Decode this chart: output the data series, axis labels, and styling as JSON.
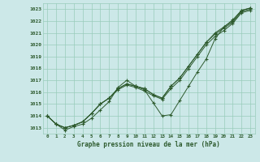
{
  "title": "Graphe pression niveau de la mer (hPa)",
  "bg_color": "#cce8e8",
  "grid_color": "#99ccbb",
  "line_color": "#2d5a2d",
  "marker_color": "#2d5a2d",
  "x": [
    0,
    1,
    2,
    3,
    4,
    5,
    6,
    7,
    8,
    9,
    10,
    11,
    12,
    13,
    14,
    15,
    16,
    17,
    18,
    19,
    20,
    21,
    22,
    23
  ],
  "series_main": [
    1014.0,
    1013.3,
    1012.8,
    1013.1,
    1013.3,
    1013.8,
    1014.5,
    1015.2,
    1016.4,
    1017.0,
    1016.5,
    1016.2,
    1015.1,
    1014.0,
    1014.1,
    1015.3,
    1016.5,
    1017.7,
    1018.8,
    1020.5,
    1021.5,
    1022.1,
    1022.9,
    1023.1
  ],
  "series_band1": [
    1014.0,
    1013.3,
    1013.0,
    1013.2,
    1013.5,
    1014.2,
    1015.0,
    1015.5,
    1016.3,
    1016.7,
    1016.5,
    1016.3,
    1015.8,
    1015.5,
    1016.5,
    1017.2,
    1018.2,
    1019.2,
    1020.2,
    1021.0,
    1021.5,
    1022.0,
    1022.9,
    1023.1
  ],
  "series_band2": [
    1014.0,
    1013.3,
    1013.0,
    1013.2,
    1013.5,
    1014.2,
    1015.0,
    1015.5,
    1016.3,
    1016.7,
    1016.5,
    1016.3,
    1015.8,
    1015.5,
    1016.5,
    1017.2,
    1018.2,
    1019.2,
    1020.2,
    1020.9,
    1021.4,
    1021.9,
    1022.8,
    1023.0
  ],
  "series_band3": [
    1014.0,
    1013.3,
    1013.0,
    1013.2,
    1013.5,
    1014.2,
    1015.0,
    1015.5,
    1016.2,
    1016.6,
    1016.4,
    1016.1,
    1015.7,
    1015.4,
    1016.3,
    1017.0,
    1018.0,
    1019.0,
    1020.0,
    1020.7,
    1021.2,
    1021.8,
    1022.7,
    1022.9
  ],
  "ylim_min": 1012.5,
  "ylim_max": 1023.5,
  "yticks": [
    1013,
    1014,
    1015,
    1016,
    1017,
    1018,
    1019,
    1020,
    1021,
    1022,
    1023
  ],
  "xlim_min": -0.5,
  "xlim_max": 23.5
}
